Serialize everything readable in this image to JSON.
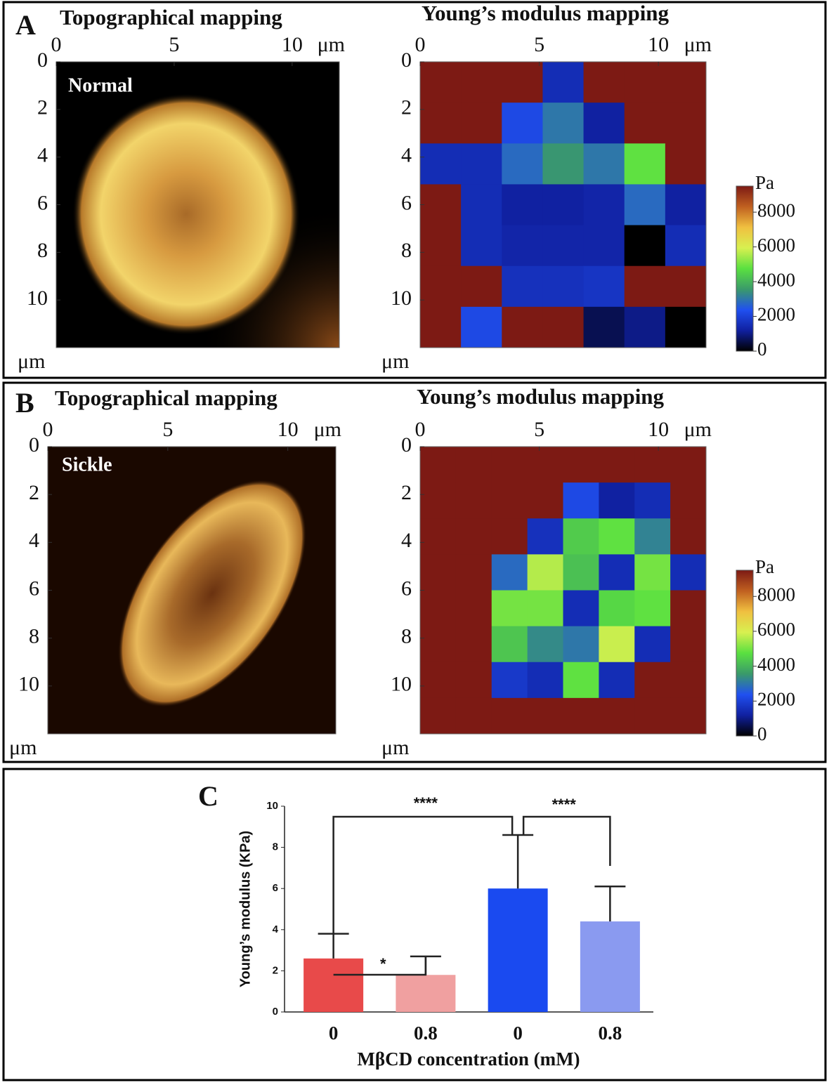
{
  "chart_data": [
    {
      "type": "image",
      "panel": "A",
      "title": "Topographical mapping",
      "label": "Normal",
      "unit": "μm",
      "xlim": [
        0,
        12
      ],
      "ylim": [
        0,
        12
      ],
      "xticks": [
        0,
        5,
        10
      ],
      "yticks": [
        0,
        2,
        4,
        6,
        8,
        10
      ]
    },
    {
      "type": "heatmap",
      "title": "Young’s modulus mapping",
      "unit": "μm",
      "xlim": [
        0,
        12
      ],
      "ylim": [
        0,
        12
      ],
      "xticks": [
        0,
        5,
        10
      ],
      "yticks": [
        0,
        2,
        4,
        6,
        8,
        10
      ],
      "values": [
        [
          9500,
          9500,
          9500,
          1500,
          9500,
          9500,
          9500
        ],
        [
          9500,
          9500,
          2200,
          3000,
          1200,
          9500,
          9500
        ],
        [
          1500,
          1500,
          2800,
          3500,
          3000,
          4800,
          9500
        ],
        [
          9500,
          1500,
          1200,
          1200,
          1300,
          2800,
          1200
        ],
        [
          9500,
          1500,
          1300,
          1300,
          1300,
          0,
          1500
        ],
        [
          9500,
          9500,
          1600,
          1600,
          1700,
          9500,
          9500
        ],
        [
          9500,
          2200,
          9500,
          9500,
          600,
          1000,
          0
        ]
      ],
      "colorbar_label": "Pa",
      "zlim": [
        0,
        9500
      ],
      "zticks": [
        0,
        2000,
        4000,
        6000,
        8000
      ],
      "colormap": [
        "#000000",
        "#1020a0",
        "#2050f0",
        "#3a9a6a",
        "#5ae040",
        "#d8f050",
        "#f0c040",
        "#c06020",
        "#7d1a14"
      ]
    },
    {
      "type": "image",
      "panel": "B",
      "title": "Topographical mapping",
      "label": "Sickle",
      "unit": "μm",
      "xlim": [
        0,
        12
      ],
      "ylim": [
        0,
        12
      ],
      "xticks": [
        0,
        5,
        10
      ],
      "yticks": [
        0,
        2,
        4,
        6,
        8,
        10
      ]
    },
    {
      "type": "heatmap",
      "title": "Young’s modulus mapping",
      "unit": "μm",
      "xlim": [
        0,
        12
      ],
      "ylim": [
        0,
        12
      ],
      "xticks": [
        0,
        5,
        10
      ],
      "yticks": [
        0,
        2,
        4,
        6,
        8,
        10
      ],
      "values": [
        [
          9500,
          9500,
          9500,
          9500,
          9500,
          9500,
          9500,
          9500
        ],
        [
          9500,
          9500,
          9500,
          9500,
          2200,
          1200,
          1500,
          9500
        ],
        [
          9500,
          9500,
          9500,
          1600,
          4400,
          4800,
          3200,
          9500
        ],
        [
          9500,
          9500,
          2800,
          5600,
          4200,
          1500,
          5000,
          1500
        ],
        [
          9500,
          9500,
          5000,
          5000,
          1500,
          4600,
          4800,
          9500
        ],
        [
          9500,
          9500,
          4300,
          3300,
          3000,
          5800,
          1500,
          9500
        ],
        [
          9500,
          9500,
          1800,
          1500,
          4800,
          1500,
          9500,
          9500
        ],
        [
          9500,
          9500,
          9500,
          9500,
          9500,
          9500,
          9500,
          9500
        ]
      ],
      "colorbar_label": "Pa",
      "zlim": [
        0,
        9500
      ],
      "zticks": [
        0,
        2000,
        4000,
        6000,
        8000
      ],
      "colormap": [
        "#000000",
        "#1020a0",
        "#2050f0",
        "#3a9a6a",
        "#5ae040",
        "#d8f050",
        "#f0c040",
        "#c06020",
        "#7d1a14"
      ]
    },
    {
      "type": "bar",
      "panel": "C",
      "categories": [
        "0",
        "0.8",
        "0",
        "0.8"
      ],
      "values": [
        2.6,
        1.8,
        6.0,
        4.4
      ],
      "errors": [
        1.2,
        0.9,
        2.6,
        1.7
      ],
      "colors": [
        "#e84a4a",
        "#f0a0a0",
        "#1a4af0",
        "#8a9af0"
      ],
      "ylim": [
        0,
        10
      ],
      "yticks": [
        0,
        2,
        4,
        6,
        8,
        10
      ],
      "ylabel": "Young’s modulus (KPa)",
      "xlabel": "MβCD concentration (mM)",
      "annotations": [
        "****",
        "****",
        "*"
      ]
    }
  ]
}
